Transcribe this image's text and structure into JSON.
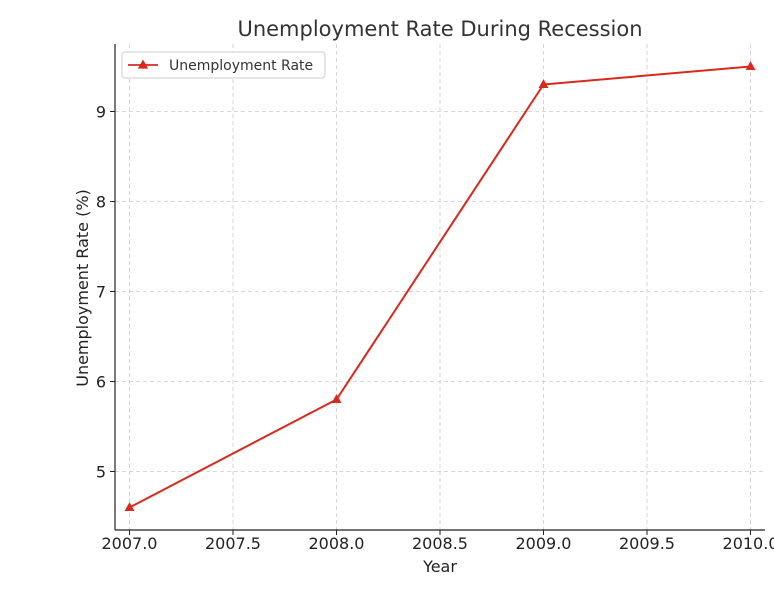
{
  "chart_data": {
    "type": "line",
    "title": "Unemployment Rate During Recession",
    "xlabel": "Year",
    "ylabel": "Unemployment Rate (%)",
    "xlim": [
      2006.93,
      2010.07
    ],
    "ylim": [
      4.35,
      9.75
    ],
    "xticks": [
      2007.0,
      2007.5,
      2008.0,
      2008.5,
      2009.0,
      2009.5,
      2010.0
    ],
    "xtick_labels": [
      "2007.0",
      "2007.5",
      "2008.0",
      "2008.5",
      "2009.0",
      "2009.5",
      "2010.0"
    ],
    "yticks": [
      5,
      6,
      7,
      8,
      9
    ],
    "ytick_labels": [
      "5",
      "6",
      "7",
      "8",
      "9"
    ],
    "grid": true,
    "legend_position": "top-left",
    "series": [
      {
        "name": "Unemployment Rate",
        "marker": "triangle",
        "color": "#d62a1e",
        "x": [
          2007,
          2008,
          2009,
          2010
        ],
        "values": [
          4.6,
          5.8,
          9.3,
          9.5
        ]
      }
    ]
  }
}
